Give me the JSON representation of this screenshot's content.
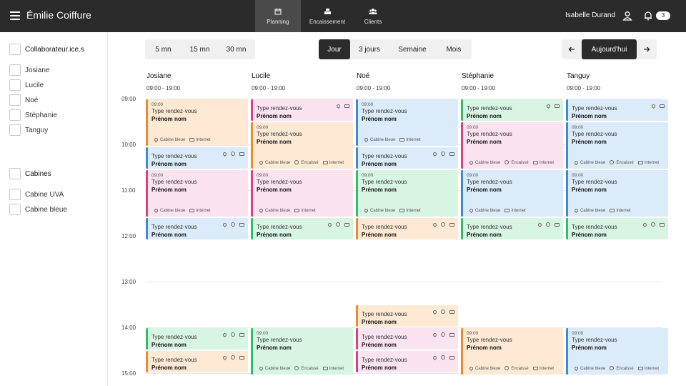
{
  "header": {
    "brand": "Émilie Coiffure",
    "tabs": [
      {
        "label": "Planning",
        "icon": "calendar-icon",
        "active": true
      },
      {
        "label": "Encaissement",
        "icon": "cash-register-icon",
        "active": false
      },
      {
        "label": "Clients",
        "icon": "users-icon",
        "active": false
      }
    ],
    "user_name": "Isabelle Durand",
    "notif_count": "3"
  },
  "sidebar": {
    "staff_heading": "Collaborateur.ice.s",
    "staff": [
      "Josiane",
      "Lucile",
      "Noé",
      "Stéphanie",
      "Tanguy"
    ],
    "cabins_heading": "Cabines",
    "cabins": [
      "Cabine UVA",
      "Cabine bleue"
    ]
  },
  "toolbar": {
    "intervals": [
      "5 mn",
      "15 mn",
      "30 mn"
    ],
    "views": [
      "Jour",
      "3 jours",
      "Semaine",
      "Mois"
    ],
    "active_view": "Jour",
    "today_label": "Aujourd'hui",
    "prev_icon": "arrow-left-icon",
    "next_icon": "arrow-right-icon"
  },
  "columns": [
    {
      "name": "Josiane",
      "hours": "09:00 - 19:00"
    },
    {
      "name": "Lucile",
      "hours": "09:00 - 19:00"
    },
    {
      "name": "Noé",
      "hours": "09:00 - 19:00"
    },
    {
      "name": "Stéphanie",
      "hours": "09:00 - 19:00"
    },
    {
      "name": "Tanguy",
      "hours": "09:00 - 19:00"
    }
  ],
  "hours": [
    "09:00",
    "10:00",
    "11:00",
    "12:00",
    "13:00",
    "14:00",
    "15:00"
  ],
  "colors": {
    "orange": {
      "bg": "#fde9d4",
      "border": "#f08a2e"
    },
    "pink": {
      "bg": "#fbe3ef",
      "border": "#dc3f86"
    },
    "blue": {
      "bg": "#dcebf9",
      "border": "#3b8bd6"
    },
    "green": {
      "bg": "#d8f4e3",
      "border": "#2fbf6b"
    }
  },
  "appointments": [
    {
      "col": 0,
      "start": 9.0,
      "end": 10.05,
      "color": "orange",
      "time": "09:00",
      "type": "Type rendez-vous",
      "name": "Prénom nom",
      "footer": [
        "Cabine bleue",
        "Internet"
      ]
    },
    {
      "col": 0,
      "start": 10.05,
      "end": 10.55,
      "color": "blue",
      "type": "Type rendez-vous",
      "name": "Prénom nom",
      "icons": true
    },
    {
      "col": 0,
      "start": 10.55,
      "end": 11.6,
      "color": "pink",
      "time": "09:00",
      "type": "Type rendez-vous",
      "name": "Prénom nom",
      "footer": [
        "Cabine bleue",
        "Internet"
      ]
    },
    {
      "col": 0,
      "start": 11.6,
      "end": 12.1,
      "color": "blue",
      "type": "Type rendez-vous",
      "name": "Prénom nom",
      "icons": true
    },
    {
      "col": 0,
      "start": 14.0,
      "end": 14.5,
      "color": "green",
      "type": "Type rendez-vous",
      "name": "Prénom nom",
      "icons": true
    },
    {
      "col": 0,
      "start": 14.5,
      "end": 15.0,
      "color": "orange",
      "type": "Type rendez-vous",
      "name": "Prénom nom",
      "icons": true
    },
    {
      "col": 1,
      "start": 9.0,
      "end": 9.5,
      "color": "pink",
      "type": "Type rendez-vous",
      "name": "Prénom nom",
      "icons": true,
      "iconcount": 2
    },
    {
      "col": 1,
      "start": 9.5,
      "end": 10.55,
      "color": "orange",
      "time": "09:00",
      "type": "Type rendez-vous",
      "name": "Prénom nom",
      "footer": [
        "Cabine bleue",
        "Encaissé",
        "Internet"
      ]
    },
    {
      "col": 1,
      "start": 10.55,
      "end": 11.6,
      "color": "pink",
      "time": "09:00",
      "type": "Type rendez-vous",
      "name": "Prénom nom",
      "footer": [
        "Cabine bleue",
        "Internet"
      ]
    },
    {
      "col": 1,
      "start": 11.6,
      "end": 12.1,
      "color": "green",
      "type": "Type rendez-vous",
      "name": "Prénom nom",
      "icons": true
    },
    {
      "col": 1,
      "start": 14.0,
      "end": 15.05,
      "color": "green",
      "time": "09:00",
      "type": "Type rendez-vous",
      "name": "Prénom nom",
      "footer": [
        "Cabine bleue",
        "Encaissé",
        "Internet"
      ]
    },
    {
      "col": 2,
      "start": 9.0,
      "end": 10.05,
      "color": "blue",
      "time": "09:00",
      "type": "Type rendez-vous",
      "name": "Prénom nom",
      "footer": [
        "Cabine bleue",
        "Internet"
      ]
    },
    {
      "col": 2,
      "start": 10.05,
      "end": 10.55,
      "color": "blue",
      "type": "Type rendez-vous",
      "name": "Prénom nom",
      "icons": true
    },
    {
      "col": 2,
      "start": 10.55,
      "end": 11.6,
      "color": "green",
      "time": "09:00",
      "type": "Type rendez-vous",
      "name": "Prénom nom",
      "footer": [
        "Cabine bleue",
        "Internet"
      ]
    },
    {
      "col": 2,
      "start": 11.6,
      "end": 12.1,
      "color": "orange",
      "type": "Type rendez-vous",
      "name": "Prénom nom",
      "icons": true
    },
    {
      "col": 2,
      "start": 13.5,
      "end": 14.0,
      "color": "orange",
      "type": "Type rendez-vous",
      "name": "Prénom nom",
      "icons": true
    },
    {
      "col": 2,
      "start": 14.0,
      "end": 14.5,
      "color": "pink",
      "type": "Type rendez-vous",
      "name": "Prénom nom",
      "icons": true
    },
    {
      "col": 2,
      "start": 14.5,
      "end": 15.0,
      "color": "pink",
      "type": "Type rendez-vous",
      "name": "Prénom nom",
      "icons": true
    },
    {
      "col": 3,
      "start": 9.0,
      "end": 9.5,
      "color": "green",
      "type": "Type rendez-vous",
      "name": "Prénom nom",
      "icons": true,
      "iconcount": 2
    },
    {
      "col": 3,
      "start": 9.5,
      "end": 10.55,
      "color": "pink",
      "time": "09:00",
      "type": "Type rendez-vous",
      "name": "Prénom nom",
      "footer": [
        "Cabine bleue",
        "Encaissé",
        "Internet"
      ]
    },
    {
      "col": 3,
      "start": 10.55,
      "end": 11.6,
      "color": "blue",
      "time": "09:00",
      "type": "Type rendez-vous",
      "name": "Prénom nom",
      "footer": [
        "Cabine bleue",
        "Internet"
      ]
    },
    {
      "col": 3,
      "start": 11.6,
      "end": 12.1,
      "color": "green",
      "type": "Type rendez-vous",
      "name": "Prénom nom",
      "icons": true
    },
    {
      "col": 3,
      "start": 14.0,
      "end": 15.05,
      "color": "orange",
      "time": "09:00",
      "type": "Type rendez-vous",
      "name": "Prénom nom",
      "footer": [
        "Cabine bleue",
        "Encaissé",
        "Internet"
      ]
    },
    {
      "col": 4,
      "start": 9.0,
      "end": 9.5,
      "color": "blue",
      "type": "Type rendez-vous",
      "name": "Prénom nom",
      "icons": true,
      "iconcount": 2
    },
    {
      "col": 4,
      "start": 9.5,
      "end": 10.55,
      "color": "blue",
      "time": "09:00",
      "type": "Type rendez-vous",
      "name": "Prénom nom",
      "footer": [
        "Cabine bleue",
        "Encaissé",
        "Internet"
      ]
    },
    {
      "col": 4,
      "start": 10.55,
      "end": 11.6,
      "color": "blue",
      "time": "09:00",
      "type": "Type rendez-vous",
      "name": "Prénom nom",
      "footer": [
        "Cabine bleue",
        "Internet"
      ]
    },
    {
      "col": 4,
      "start": 11.6,
      "end": 12.1,
      "color": "green",
      "type": "Type rendez-vous",
      "name": "Prénom nom",
      "icons": true
    },
    {
      "col": 4,
      "start": 14.0,
      "end": 15.05,
      "color": "blue",
      "time": "09:00",
      "type": "Type rendez-vous",
      "name": "Prénom nom",
      "footer": [
        "Cabine bleue",
        "Encaissé",
        "Internet"
      ]
    }
  ]
}
